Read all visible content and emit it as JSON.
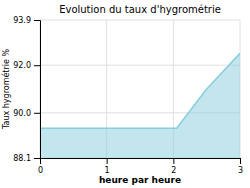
{
  "chart_data": {
    "type": "area",
    "title": "Evolution du taux d'hygrométrie",
    "xlabel": "heure par heure",
    "ylabel": "Taux hygrométrie %",
    "x": [
      0,
      0.05,
      1.0,
      2.0,
      2.05,
      2.5,
      3.0
    ],
    "values": [
      89.35,
      89.35,
      89.35,
      89.35,
      89.35,
      91.0,
      92.5
    ],
    "xlim": [
      0,
      3
    ],
    "ylim": [
      88.1,
      93.9
    ],
    "xticks": [
      0,
      1,
      2,
      3
    ],
    "yticks": [
      88.1,
      {
        "value": 90,
        "label": "90.0"
      },
      {
        "value": 92,
        "label": "92.0"
      },
      93.9
    ],
    "grid": true,
    "color": "#88ccdd"
  }
}
